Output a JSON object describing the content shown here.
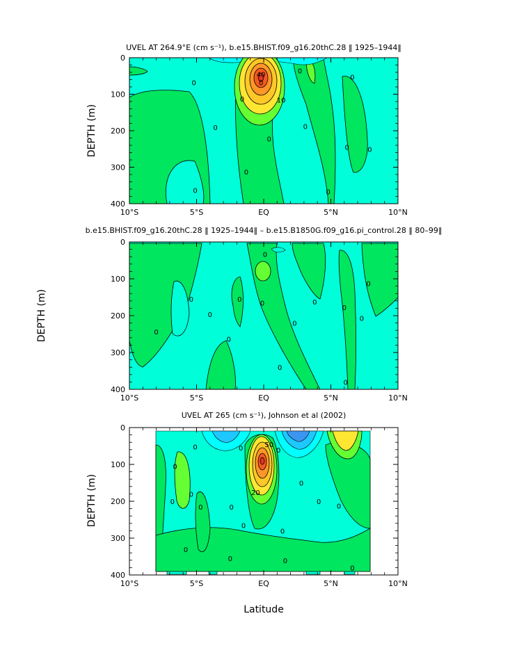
{
  "chart_data": [
    {
      "type": "contour",
      "title": "UVEL AT 264.9°E (cm s⁻¹), b.e15.BHIST.f09_g16.20thC.28 ‖ 1925–1944‖",
      "xlabel": "",
      "ylabel": "DEPTH (m)",
      "xlim": [
        -10,
        10
      ],
      "ylim": [
        400,
        0
      ],
      "x_ticks": [
        "10°S",
        "5°S",
        "EQ",
        "5°N",
        "10°N"
      ],
      "y_ticks": [
        "0",
        "100",
        "200",
        "300",
        "400"
      ],
      "contour_labels": [
        {
          "text": "40",
          "lat": -0.2,
          "depth": 45
        },
        {
          "text": "0",
          "lat": -0.2,
          "depth": 68
        },
        {
          "text": "10",
          "lat": 1.3,
          "depth": 115
        },
        {
          "text": "0",
          "lat": -5.2,
          "depth": 68
        },
        {
          "text": "0",
          "lat": -1.6,
          "depth": 112
        },
        {
          "text": "0",
          "lat": 2.7,
          "depth": 35
        },
        {
          "text": "0",
          "lat": -3.6,
          "depth": 190
        },
        {
          "text": "0",
          "lat": 0.4,
          "depth": 222
        },
        {
          "text": "0",
          "lat": -1.3,
          "depth": 312
        },
        {
          "text": "0",
          "lat": -5.1,
          "depth": 363
        },
        {
          "text": "0",
          "lat": 3.1,
          "depth": 188
        },
        {
          "text": "0",
          "lat": 6.6,
          "depth": 52
        },
        {
          "text": "0",
          "lat": 6.2,
          "depth": 245
        },
        {
          "text": "0",
          "lat": 7.9,
          "depth": 250
        },
        {
          "text": "0",
          "lat": 4.8,
          "depth": 367
        }
      ]
    },
    {
      "type": "contour",
      "title": "b.e15.BHIST.f09_g16.20thC.28 ‖ 1925–1944‖ – b.e15.B1850G.f09_g16.pi_control.28 ‖ 80–99‖",
      "xlabel": "",
      "ylabel": "DEPTH (m)",
      "xlim": [
        -10,
        10
      ],
      "ylim": [
        400,
        0
      ],
      "x_ticks": [
        "10°S",
        "5°S",
        "EQ",
        "5°N",
        "10°N"
      ],
      "y_ticks": [
        "0",
        "100",
        "200",
        "300",
        "400"
      ],
      "contour_labels": [
        {
          "text": "0",
          "lat": -8.0,
          "depth": 243
        },
        {
          "text": "0",
          "lat": -5.4,
          "depth": 155
        },
        {
          "text": "0",
          "lat": -4.0,
          "depth": 196
        },
        {
          "text": "0",
          "lat": -1.8,
          "depth": 155
        },
        {
          "text": "0",
          "lat": -0.1,
          "depth": 165
        },
        {
          "text": "0",
          "lat": -2.6,
          "depth": 263
        },
        {
          "text": "0",
          "lat": 0.1,
          "depth": 33
        },
        {
          "text": "0",
          "lat": 2.3,
          "depth": 220
        },
        {
          "text": "0",
          "lat": 1.2,
          "depth": 340
        },
        {
          "text": "0",
          "lat": 3.8,
          "depth": 162
        },
        {
          "text": "0",
          "lat": 6.0,
          "depth": 177
        },
        {
          "text": "0",
          "lat": 7.8,
          "depth": 112
        },
        {
          "text": "0",
          "lat": 7.3,
          "depth": 207
        },
        {
          "text": "0",
          "lat": 6.1,
          "depth": 380
        }
      ]
    },
    {
      "type": "contour",
      "title": "UVEL AT 265 (cm s⁻¹), Johnson et al (2002)",
      "xlabel": "Latitude",
      "ylabel": "DEPTH (m)",
      "xlim": [
        -10,
        10
      ],
      "ylim": [
        400,
        0
      ],
      "x_ticks": [
        "10°S",
        "5°S",
        "EQ",
        "5°N",
        "10°N"
      ],
      "y_ticks": [
        "0",
        "100",
        "200",
        "300",
        "400"
      ],
      "contour_labels": [
        {
          "text": "50",
          "lat": 0.4,
          "depth": 45
        },
        {
          "text": "20",
          "lat": -0.6,
          "depth": 175
        },
        {
          "text": "0",
          "lat": -5.1,
          "depth": 52
        },
        {
          "text": "0",
          "lat": -1.7,
          "depth": 55
        },
        {
          "text": "0",
          "lat": 1.1,
          "depth": 60
        },
        {
          "text": "0",
          "lat": -6.8,
          "depth": 200
        },
        {
          "text": "0",
          "lat": -6.6,
          "depth": 105
        },
        {
          "text": "0",
          "lat": -5.4,
          "depth": 180
        },
        {
          "text": "0",
          "lat": -5.8,
          "depth": 330
        },
        {
          "text": "0",
          "lat": -4.7,
          "depth": 215
        },
        {
          "text": "0",
          "lat": -2.4,
          "depth": 215
        },
        {
          "text": "0",
          "lat": -1.5,
          "depth": 265
        },
        {
          "text": "0",
          "lat": -2.5,
          "depth": 355
        },
        {
          "text": "0",
          "lat": 2.8,
          "depth": 150
        },
        {
          "text": "0",
          "lat": 4.1,
          "depth": 200
        },
        {
          "text": "0",
          "lat": 1.4,
          "depth": 280
        },
        {
          "text": "0",
          "lat": 1.6,
          "depth": 360
        },
        {
          "text": "0",
          "lat": 5.6,
          "depth": 212
        },
        {
          "text": "0",
          "lat": 6.6,
          "depth": 380
        }
      ]
    }
  ],
  "colors": {
    "cyan": "#00ffd9",
    "green": "#00e65f",
    "lightgreen": "#66ff33",
    "paleblue": "#00ffff",
    "skyblue": "#1ec8ff",
    "blue": "#3c96f0",
    "yellow": "#ffe633",
    "gold": "#ffc828",
    "orange": "#ff9628",
    "deeporange": "#f55a1e",
    "red": "#e63228"
  }
}
